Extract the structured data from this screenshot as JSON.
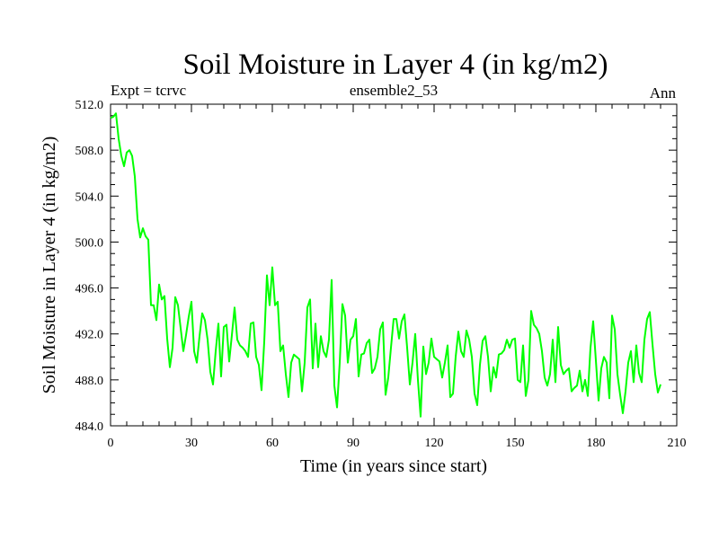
{
  "chart_data": {
    "type": "line",
    "title": "Soil Moisture in Layer 4 (in kg/m2)",
    "subtitle_left": "Expt = tcrvc",
    "subtitle_center": "ensemble2_53",
    "subtitle_right": "Ann",
    "xlabel": "Time (in years since start)",
    "ylabel": "Soil Moisture in Layer 4 (in kg/m2)",
    "xlim": [
      0,
      210
    ],
    "ylim": [
      484,
      512
    ],
    "xticks": [
      0,
      30,
      60,
      90,
      120,
      150,
      180,
      210
    ],
    "xtick_labels": [
      "0",
      "30",
      "60",
      "90",
      "120",
      "150",
      "180",
      "210"
    ],
    "yticks": [
      484,
      488,
      492,
      496,
      500,
      504,
      508,
      512
    ],
    "ytick_labels": [
      "484.0",
      "488.0",
      "492.0",
      "496.0",
      "500.0",
      "504.0",
      "508.0",
      "512.0"
    ],
    "grid": false,
    "line_color": "#00ff00",
    "series": [
      {
        "name": "ensemble2_53",
        "x_start": 0,
        "x_step": 1,
        "values": [
          510.8,
          510.9,
          511.2,
          509.0,
          507.5,
          506.6,
          507.8,
          508.0,
          507.5,
          505.7,
          502.0,
          500.4,
          501.2,
          500.5,
          500.2,
          494.5,
          494.5,
          493.2,
          496.3,
          495.0,
          495.3,
          491.6,
          489.1,
          490.8,
          495.2,
          494.5,
          492.5,
          490.5,
          491.9,
          493.5,
          494.8,
          490.5,
          489.5,
          491.8,
          493.8,
          493.2,
          491.5,
          488.7,
          487.6,
          490.5,
          492.9,
          488.3,
          492.6,
          492.8,
          489.6,
          491.9,
          494.3,
          491.5,
          491.0,
          490.8,
          490.5,
          490.0,
          492.9,
          493.0,
          490.0,
          489.3,
          487.1,
          491.3,
          497.1,
          494.5,
          497.8,
          494.5,
          494.8,
          490.5,
          491.0,
          488.5,
          486.5,
          489.5,
          490.2,
          490.0,
          489.8,
          487.0,
          489.5,
          494.3,
          495.0,
          489.0,
          492.9,
          489.1,
          491.8,
          490.5,
          490.0,
          491.5,
          496.7,
          487.5,
          485.6,
          489.5,
          494.6,
          493.6,
          489.5,
          491.5,
          491.8,
          493.3,
          488.3,
          490.2,
          490.3,
          491.2,
          491.5,
          488.6,
          489.0,
          490.0,
          492.4,
          493.0,
          486.7,
          488.2,
          490.8,
          493.3,
          493.3,
          491.6,
          493.1,
          493.7,
          490.8,
          487.6,
          489.5,
          492.0,
          488.0,
          484.8,
          490.9,
          488.5,
          489.5,
          491.6,
          490.0,
          489.8,
          489.6,
          488.2,
          489.5,
          491.0,
          486.5,
          486.8,
          490.0,
          492.2,
          490.5,
          490.0,
          492.3,
          491.5,
          490.0,
          486.8,
          485.8,
          489.3,
          491.4,
          491.8,
          490.0,
          487.0,
          489.1,
          488.2,
          490.2,
          490.3,
          490.6,
          491.5,
          490.8,
          491.5,
          491.6,
          488.0,
          487.8,
          491.0,
          486.6,
          488.0,
          494.0,
          492.8,
          492.5,
          492.0,
          490.5,
          488.2,
          487.5,
          488.5,
          491.5,
          487.8,
          492.6,
          489.3,
          488.5,
          488.8,
          489.0,
          487.0,
          487.3,
          487.5,
          488.8,
          487.0,
          488.0,
          486.6,
          490.8,
          493.1,
          489.7,
          486.2,
          489.0,
          490.0,
          489.5,
          486.4,
          493.6,
          492.4,
          488.5,
          486.7,
          485.1,
          487.0,
          489.5,
          490.5,
          487.8,
          491.0,
          488.6,
          487.8,
          491.5,
          493.3,
          493.9,
          491.1,
          488.5,
          486.9,
          487.6
        ]
      }
    ]
  }
}
